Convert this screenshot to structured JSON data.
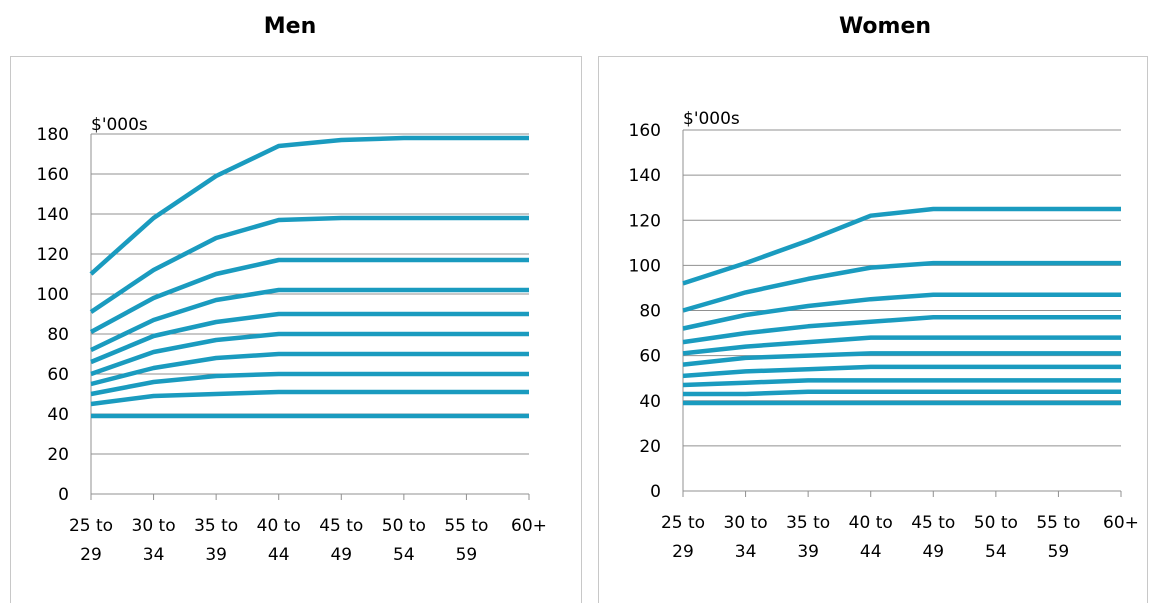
{
  "chart_data": [
    {
      "type": "line",
      "title": "Men",
      "unit_label": "$'000s",
      "categories": [
        "25 to 29",
        "30 to 34",
        "35 to 39",
        "40 to 44",
        "45 to 49",
        "50 to 54",
        "55 to 59",
        "60+"
      ],
      "ylim": [
        0,
        180
      ],
      "yticks": [
        0,
        20,
        40,
        60,
        80,
        100,
        120,
        140,
        160,
        180
      ],
      "grid": true,
      "series": [
        {
          "values": [
            110,
            138,
            159,
            174,
            177,
            178,
            178,
            178
          ]
        },
        {
          "values": [
            91,
            112,
            128,
            137,
            138,
            138,
            138,
            138
          ]
        },
        {
          "values": [
            81,
            98,
            110,
            117,
            117,
            117,
            117,
            117
          ]
        },
        {
          "values": [
            72,
            87,
            97,
            102,
            102,
            102,
            102,
            102
          ]
        },
        {
          "values": [
            66,
            79,
            86,
            90,
            90,
            90,
            90,
            90
          ]
        },
        {
          "values": [
            60,
            71,
            77,
            80,
            80,
            80,
            80,
            80
          ]
        },
        {
          "values": [
            55,
            63,
            68,
            70,
            70,
            70,
            70,
            70
          ]
        },
        {
          "values": [
            50,
            56,
            59,
            60,
            60,
            60,
            60,
            60
          ]
        },
        {
          "values": [
            45,
            49,
            50,
            51,
            51,
            51,
            51,
            51
          ]
        },
        {
          "values": [
            39,
            39,
            39,
            39,
            39,
            39,
            39,
            39
          ]
        }
      ]
    },
    {
      "type": "line",
      "title": "Women",
      "unit_label": "$'000s",
      "categories": [
        "25 to 29",
        "30 to 34",
        "35 to 39",
        "40 to 44",
        "45 to 49",
        "50 to 54",
        "55 to 59",
        "60+"
      ],
      "ylim": [
        0,
        160
      ],
      "yticks": [
        0,
        20,
        40,
        60,
        80,
        100,
        120,
        140,
        160
      ],
      "grid": true,
      "series": [
        {
          "values": [
            92,
            101,
            111,
            122,
            125,
            125,
            125,
            125
          ]
        },
        {
          "values": [
            80,
            88,
            94,
            99,
            101,
            101,
            101,
            101
          ]
        },
        {
          "values": [
            72,
            78,
            82,
            85,
            87,
            87,
            87,
            87
          ]
        },
        {
          "values": [
            66,
            70,
            73,
            75,
            77,
            77,
            77,
            77
          ]
        },
        {
          "values": [
            61,
            64,
            66,
            68,
            68,
            68,
            68,
            68
          ]
        },
        {
          "values": [
            56,
            59,
            60,
            61,
            61,
            61,
            61,
            61
          ]
        },
        {
          "values": [
            51,
            53,
            54,
            55,
            55,
            55,
            55,
            55
          ]
        },
        {
          "values": [
            47,
            48,
            49,
            49,
            49,
            49,
            49,
            49
          ]
        },
        {
          "values": [
            43,
            43,
            44,
            44,
            44,
            44,
            44,
            44
          ]
        },
        {
          "values": [
            39,
            39,
            39,
            39,
            39,
            39,
            39,
            39
          ]
        }
      ]
    }
  ],
  "style": {
    "line_color": "#1a9bbf",
    "grid_color": "#909090",
    "axis_color": "#909090",
    "panel_border": "#c8c8c8"
  }
}
